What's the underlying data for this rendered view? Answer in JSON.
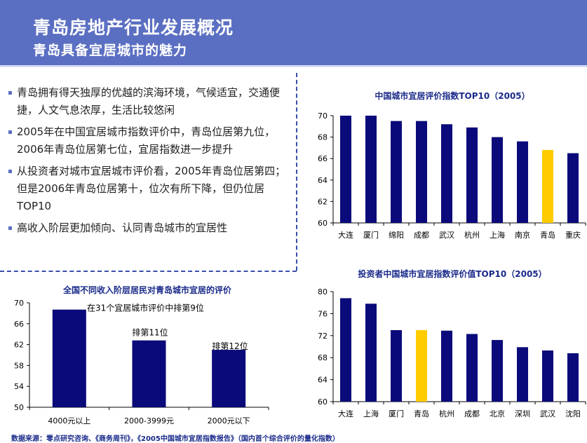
{
  "header": {
    "title": "青岛房地产行业发展概况",
    "subtitle": "青岛具备宜居城市的魅力"
  },
  "bullets": [
    "青岛拥有得天独厚的优越的滨海环境，气候适宜，交通便捷，人文气息浓厚，生活比较悠闲",
    "2005年在中国宜居城市指数评价中，青岛位居第九位，2006年青岛位居第七位，宜居指数进一步提升",
    "从投资者对城市宜居城市评价看，2005年青岛位居第四；但是2006年青岛位居第十，位次有所下降，但仍位居TOP10",
    "高收入阶层更加倾向、认同青岛城市的宜居性"
  ],
  "source": "数据来源：零点研究咨询、《商务周刊》，《2005中国城市宜居指数报告》（国内首个综合评价的量化指数）",
  "colors": {
    "header": "#5b6fc2",
    "bar": "#0a0a7a",
    "highlight": "#ffcc00"
  },
  "chart_data": [
    {
      "type": "bar",
      "title": "中国城市宜居评价指数TOP10（2005）",
      "categories": [
        "大连",
        "厦门",
        "绵阳",
        "成都",
        "武汉",
        "杭州",
        "上海",
        "南京",
        "青岛",
        "重庆"
      ],
      "values": [
        70.0,
        70.0,
        69.5,
        69.5,
        69.2,
        68.9,
        68.0,
        67.6,
        66.8,
        66.5
      ],
      "highlight": "青岛",
      "ylim": [
        60,
        70
      ],
      "yticks": [
        "60",
        "62",
        "64",
        "66",
        "68",
        "70"
      ]
    },
    {
      "type": "bar",
      "title": "投资者中国城市宜居指数评价值TOP10（2005）",
      "categories": [
        "大连",
        "上海",
        "厦门",
        "青岛",
        "杭州",
        "成都",
        "北京",
        "深圳",
        "武汉",
        "沈阳"
      ],
      "values": [
        78.8,
        77.8,
        73.0,
        73.0,
        72.9,
        72.3,
        71.2,
        69.9,
        69.3,
        68.8
      ],
      "highlight": "青岛",
      "ylim": [
        60,
        80
      ],
      "yticks": [
        "60",
        "64",
        "68",
        "72",
        "76",
        "80"
      ]
    },
    {
      "type": "bar",
      "title": "全国不同收入阶层居民对青岛城市宜居的评价",
      "categories": [
        "4000元以上",
        "2000-3999元",
        "2000元以下"
      ],
      "values": [
        68.7,
        62.8,
        61.0
      ],
      "annotations": [
        "在31个宜居城市评价中排第9位",
        "排第11位",
        "排第12位"
      ],
      "ylim": [
        50,
        70
      ],
      "yticks": [
        "50",
        "54",
        "58",
        "62",
        "66",
        "70"
      ]
    }
  ]
}
